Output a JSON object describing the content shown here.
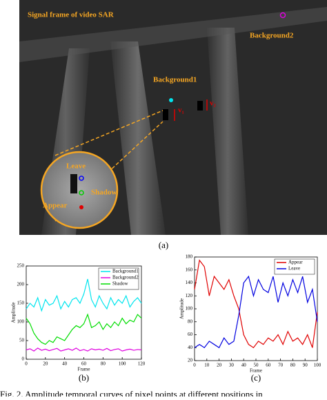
{
  "figure": {
    "image_title": "Signal frame of  video SAR",
    "background2": "Background2",
    "background1": "Background1",
    "v1": "v₁",
    "v2": "v₂",
    "leave": "Leave",
    "shadow": "Shadow",
    "appear": "Appear",
    "caption_a": "(a)",
    "caption": "Fig. 2.   Amplitude temporal curves of pixel points at different positions in"
  },
  "chart_data": [
    {
      "type": "line",
      "caption": "(b)",
      "xlabel": "Frame",
      "ylabel": "Amplitude",
      "x": [
        0,
        4,
        8,
        12,
        16,
        20,
        24,
        28,
        32,
        36,
        40,
        44,
        48,
        52,
        56,
        60,
        64,
        68,
        72,
        76,
        80,
        84,
        88,
        92,
        96,
        100,
        104,
        108,
        112,
        116,
        120
      ],
      "xlim": [
        0,
        120
      ],
      "xticks": [
        0,
        20,
        40,
        60,
        80,
        100,
        120
      ],
      "ylim": [
        0,
        250
      ],
      "yticks": [
        0,
        50,
        100,
        150,
        200,
        250
      ],
      "legend": "top-right",
      "series": [
        {
          "name": "Background1",
          "color": "#00e5ee",
          "values": [
            135,
            150,
            140,
            165,
            130,
            160,
            145,
            150,
            170,
            135,
            155,
            140,
            160,
            165,
            150,
            175,
            215,
            160,
            140,
            170,
            150,
            135,
            165,
            145,
            160,
            150,
            170,
            140,
            155,
            165,
            150
          ]
        },
        {
          "name": "Background2",
          "color": "#e000e0",
          "values": [
            25,
            28,
            22,
            30,
            24,
            27,
            23,
            26,
            29,
            22,
            25,
            28,
            24,
            30,
            23,
            26,
            22,
            28,
            25,
            27,
            24,
            29,
            23,
            26,
            28,
            22,
            25,
            27,
            24,
            26,
            25
          ]
        },
        {
          "name": "Shadow",
          "color": "#00dd00",
          "values": [
            110,
            95,
            70,
            55,
            45,
            40,
            50,
            45,
            60,
            55,
            50,
            65,
            80,
            90,
            85,
            95,
            120,
            85,
            90,
            100,
            80,
            95,
            85,
            100,
            90,
            110,
            95,
            105,
            100,
            120,
            110
          ]
        }
      ]
    },
    {
      "type": "line",
      "caption": "(c)",
      "xlabel": "Frame",
      "ylabel": "Amplitude",
      "x": [
        0,
        4,
        8,
        12,
        16,
        20,
        24,
        28,
        32,
        36,
        40,
        44,
        48,
        52,
        56,
        60,
        64,
        68,
        72,
        76,
        80,
        84,
        88,
        92,
        96,
        100
      ],
      "xlim": [
        0,
        100
      ],
      "xticks": [
        0,
        10,
        20,
        30,
        40,
        50,
        60,
        70,
        80,
        90,
        100
      ],
      "ylim": [
        20,
        180
      ],
      "yticks": [
        20,
        40,
        60,
        80,
        100,
        120,
        140,
        160,
        180
      ],
      "legend": "top-right",
      "series": [
        {
          "name": "Appear",
          "color": "#e00000",
          "values": [
            130,
            175,
            165,
            120,
            150,
            140,
            130,
            145,
            120,
            100,
            60,
            45,
            40,
            50,
            45,
            55,
            50,
            60,
            45,
            65,
            50,
            55,
            45,
            60,
            40,
            95
          ]
        },
        {
          "name": "Leave",
          "color": "#0000e0",
          "values": [
            40,
            45,
            40,
            50,
            45,
            40,
            55,
            45,
            50,
            90,
            140,
            150,
            120,
            145,
            130,
            125,
            150,
            110,
            140,
            120,
            145,
            125,
            150,
            110,
            130,
            80
          ]
        }
      ]
    }
  ]
}
